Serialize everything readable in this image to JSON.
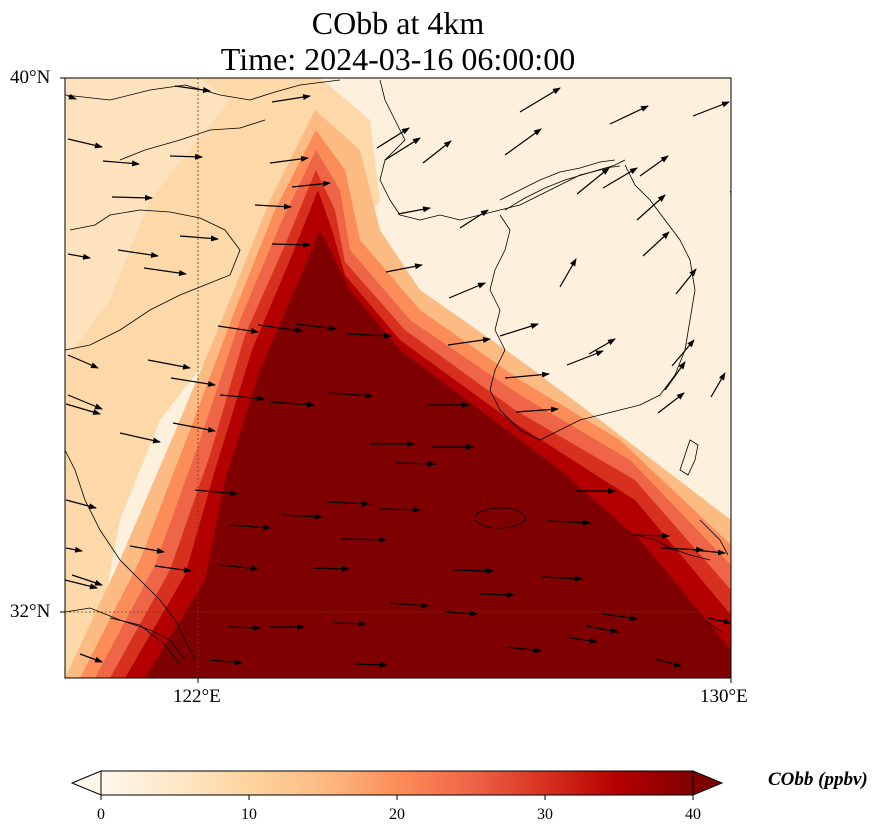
{
  "title": {
    "line1": "CObb at 4km",
    "line2": "Time: 2024-03-16 06:00:00"
  },
  "map": {
    "lat_labels": [
      "40°N",
      "32°N"
    ],
    "lon_labels": [
      "122°E",
      "130°E"
    ],
    "extent": {
      "lon_min": 120,
      "lon_max": 130,
      "lat_min": 31,
      "lat_max": 40
    },
    "variable": "CObb",
    "units": "ppbv",
    "level": "4km"
  },
  "colorbar": {
    "title": "CObb (ppbv)",
    "ticks": [
      "0",
      "10",
      "20",
      "30",
      "40"
    ],
    "min": 0,
    "max": 40,
    "colors": [
      "#fff7ec",
      "#fee8c8",
      "#fdd49e",
      "#fdbb84",
      "#fc8d59",
      "#ef6548",
      "#d7301f",
      "#b30000",
      "#7f0000"
    ],
    "extend": "both"
  }
}
